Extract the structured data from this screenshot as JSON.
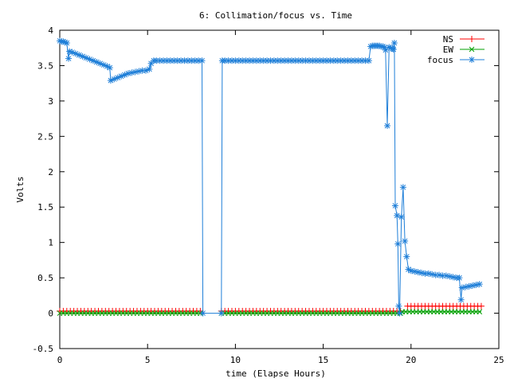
{
  "chart_data": {
    "type": "line",
    "title": "6: Collimation/focus vs. Time",
    "xlabel": "time (Elapse Hours)",
    "ylabel": "Volts",
    "xlim": [
      0,
      25
    ],
    "ylim": [
      -0.5,
      4
    ],
    "x_ticks": [
      "0",
      "5",
      "10",
      "15",
      "20",
      "25"
    ],
    "y_ticks": [
      "-0.5",
      "0",
      "0.5",
      "1",
      "1.5",
      "2",
      "2.5",
      "3",
      "3.5",
      "4"
    ],
    "grid": false,
    "legend_position": "top-right",
    "colors": {
      "NS": "#ff0000",
      "EW": "#00a000",
      "focus": "#1f7fd8"
    },
    "series": [
      {
        "name": "NS",
        "marker": "plus",
        "segments": [
          {
            "x_start": 0.0,
            "x_end": 8.15,
            "value": 0.03
          },
          {
            "x_start": 9.2,
            "x_end": 19.5,
            "value": 0.03
          },
          {
            "x_start": 19.8,
            "x_end": 24.0,
            "value": 0.1
          }
        ]
      },
      {
        "name": "EW",
        "marker": "cross",
        "segments": [
          {
            "x_start": 0.0,
            "x_end": 8.15,
            "value": 0.0
          },
          {
            "x_start": 9.2,
            "x_end": 19.5,
            "value": 0.0
          },
          {
            "x_start": 19.5,
            "x_end": 24.0,
            "value": 0.02
          }
        ]
      },
      {
        "name": "focus",
        "marker": "star",
        "points": [
          [
            0.0,
            3.85
          ],
          [
            0.1,
            3.84
          ],
          [
            0.2,
            3.84
          ],
          [
            0.3,
            3.83
          ],
          [
            0.4,
            3.82
          ],
          [
            0.5,
            3.6
          ],
          [
            0.55,
            3.7
          ],
          [
            0.7,
            3.69
          ],
          [
            0.9,
            3.67
          ],
          [
            1.1,
            3.65
          ],
          [
            1.3,
            3.63
          ],
          [
            1.5,
            3.61
          ],
          [
            1.7,
            3.59
          ],
          [
            1.9,
            3.57
          ],
          [
            2.1,
            3.55
          ],
          [
            2.3,
            3.53
          ],
          [
            2.5,
            3.51
          ],
          [
            2.7,
            3.49
          ],
          [
            2.85,
            3.47
          ],
          [
            2.9,
            3.29
          ],
          [
            3.1,
            3.31
          ],
          [
            3.3,
            3.33
          ],
          [
            3.5,
            3.35
          ],
          [
            3.7,
            3.37
          ],
          [
            3.9,
            3.39
          ],
          [
            4.1,
            3.4
          ],
          [
            4.3,
            3.41
          ],
          [
            4.5,
            3.42
          ],
          [
            4.7,
            3.43
          ],
          [
            4.9,
            3.43
          ],
          [
            5.1,
            3.45
          ],
          [
            5.2,
            3.53
          ],
          [
            5.35,
            3.57
          ],
          [
            5.5,
            3.57
          ],
          [
            5.7,
            3.57
          ],
          [
            5.9,
            3.57
          ],
          [
            6.1,
            3.57
          ],
          [
            6.3,
            3.57
          ],
          [
            6.5,
            3.57
          ],
          [
            6.7,
            3.57
          ],
          [
            6.9,
            3.57
          ],
          [
            7.1,
            3.57
          ],
          [
            7.3,
            3.57
          ],
          [
            7.5,
            3.57
          ],
          [
            7.7,
            3.57
          ],
          [
            7.9,
            3.57
          ],
          [
            8.1,
            3.57
          ],
          [
            8.15,
            0.0
          ],
          [
            9.2,
            0.0
          ],
          [
            9.25,
            3.57
          ],
          [
            9.4,
            3.57
          ],
          [
            9.6,
            3.57
          ],
          [
            9.8,
            3.57
          ],
          [
            10.0,
            3.57
          ],
          [
            10.2,
            3.57
          ],
          [
            10.4,
            3.57
          ],
          [
            10.6,
            3.57
          ],
          [
            10.8,
            3.57
          ],
          [
            11.0,
            3.57
          ],
          [
            11.2,
            3.57
          ],
          [
            11.4,
            3.57
          ],
          [
            11.6,
            3.57
          ],
          [
            11.8,
            3.57
          ],
          [
            12.0,
            3.57
          ],
          [
            12.2,
            3.57
          ],
          [
            12.4,
            3.57
          ],
          [
            12.6,
            3.57
          ],
          [
            12.8,
            3.57
          ],
          [
            13.0,
            3.57
          ],
          [
            13.2,
            3.57
          ],
          [
            13.4,
            3.57
          ],
          [
            13.6,
            3.57
          ],
          [
            13.8,
            3.57
          ],
          [
            14.0,
            3.57
          ],
          [
            14.2,
            3.57
          ],
          [
            14.4,
            3.57
          ],
          [
            14.6,
            3.57
          ],
          [
            14.8,
            3.57
          ],
          [
            15.0,
            3.57
          ],
          [
            15.2,
            3.57
          ],
          [
            15.4,
            3.57
          ],
          [
            15.6,
            3.57
          ],
          [
            15.8,
            3.57
          ],
          [
            16.0,
            3.57
          ],
          [
            16.2,
            3.57
          ],
          [
            16.4,
            3.57
          ],
          [
            16.6,
            3.57
          ],
          [
            16.8,
            3.57
          ],
          [
            17.0,
            3.57
          ],
          [
            17.2,
            3.57
          ],
          [
            17.4,
            3.57
          ],
          [
            17.6,
            3.57
          ],
          [
            17.7,
            3.77
          ],
          [
            17.8,
            3.78
          ],
          [
            17.9,
            3.78
          ],
          [
            18.0,
            3.78
          ],
          [
            18.1,
            3.78
          ],
          [
            18.2,
            3.78
          ],
          [
            18.3,
            3.77
          ],
          [
            18.4,
            3.77
          ],
          [
            18.5,
            3.76
          ],
          [
            18.55,
            3.72
          ],
          [
            18.65,
            2.65
          ],
          [
            18.75,
            3.76
          ],
          [
            18.85,
            3.75
          ],
          [
            18.95,
            3.74
          ],
          [
            19.0,
            3.73
          ],
          [
            19.05,
            3.82
          ],
          [
            19.1,
            1.52
          ],
          [
            19.2,
            1.38
          ],
          [
            19.25,
            0.98
          ],
          [
            19.3,
            0.1
          ],
          [
            19.35,
            0.0
          ],
          [
            19.45,
            1.36
          ],
          [
            19.55,
            1.78
          ],
          [
            19.65,
            1.02
          ],
          [
            19.75,
            0.8
          ],
          [
            19.85,
            0.62
          ],
          [
            20.0,
            0.6
          ],
          [
            20.2,
            0.59
          ],
          [
            20.4,
            0.58
          ],
          [
            20.6,
            0.57
          ],
          [
            20.8,
            0.56
          ],
          [
            21.0,
            0.56
          ],
          [
            21.2,
            0.55
          ],
          [
            21.4,
            0.54
          ],
          [
            21.6,
            0.54
          ],
          [
            21.8,
            0.53
          ],
          [
            22.0,
            0.53
          ],
          [
            22.2,
            0.52
          ],
          [
            22.4,
            0.51
          ],
          [
            22.6,
            0.5
          ],
          [
            22.75,
            0.5
          ],
          [
            22.85,
            0.19
          ],
          [
            22.9,
            0.36
          ],
          [
            23.1,
            0.37
          ],
          [
            23.3,
            0.38
          ],
          [
            23.5,
            0.39
          ],
          [
            23.7,
            0.4
          ],
          [
            23.9,
            0.41
          ]
        ]
      }
    ]
  }
}
